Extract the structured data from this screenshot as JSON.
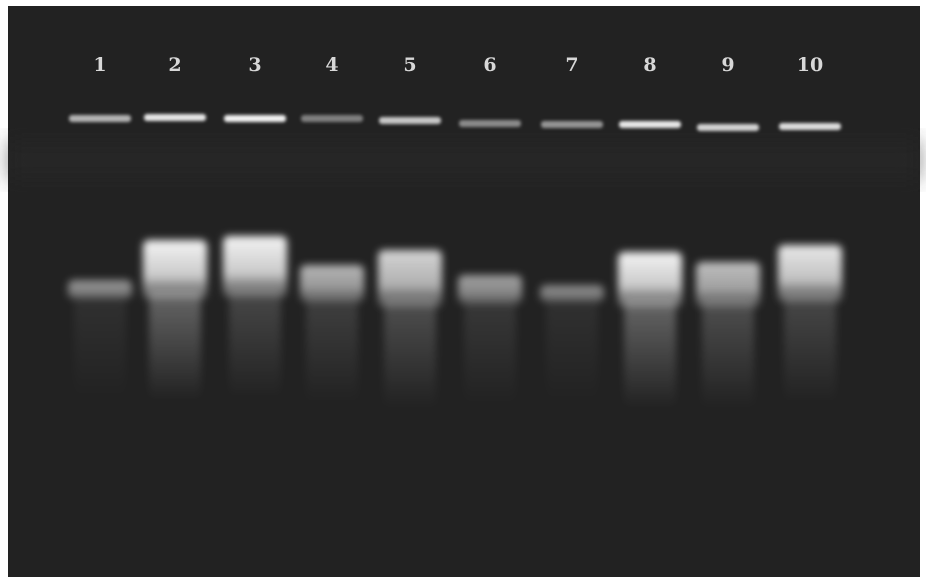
{
  "lane_labels": [
    "1",
    "2",
    "3",
    "4",
    "5",
    "6",
    "7",
    "8",
    "9",
    "10"
  ]
}
